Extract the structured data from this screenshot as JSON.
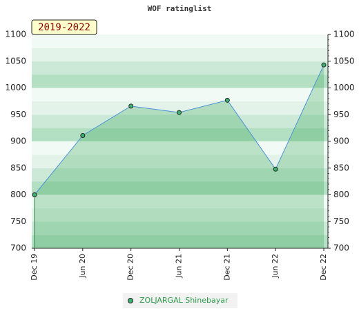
{
  "chart_data": {
    "type": "line",
    "title": "WOF ratinglist",
    "badge": "2019-2022",
    "categories": [
      "Dec 19",
      "Jun 20",
      "Dec 20",
      "Jun 21",
      "Dec 21",
      "Jun 22",
      "Dec 22"
    ],
    "series": [
      {
        "name": "ZOLJARGAL Shinebayar",
        "color": "#4a90d9",
        "values": [
          800,
          911,
          966,
          954,
          977,
          848,
          1043
        ]
      }
    ],
    "ylim": [
      700,
      1100
    ],
    "yticks": [
      700,
      750,
      800,
      850,
      900,
      950,
      1000,
      1050,
      1100
    ]
  }
}
